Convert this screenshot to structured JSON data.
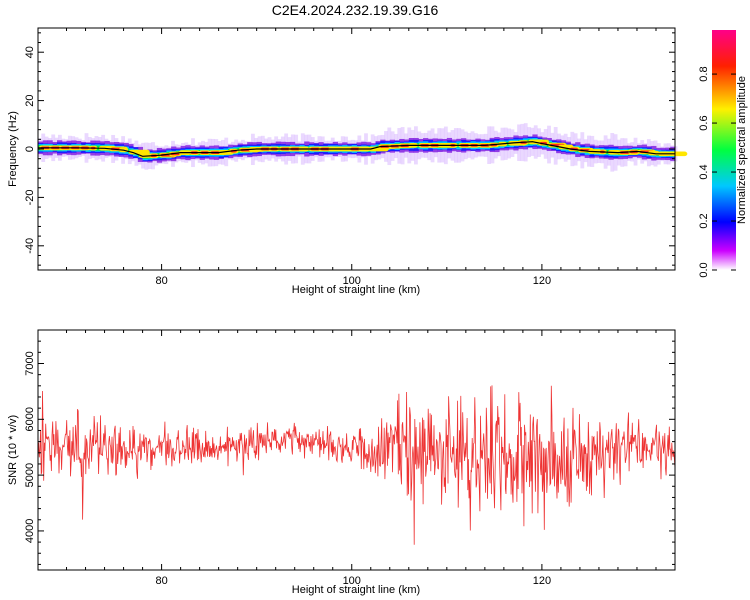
{
  "title": "C2E4.2024.232.19.39.G16",
  "chart_data": [
    {
      "type": "heatmap",
      "xlabel": "Height of straight line (km)",
      "ylabel": "Frequency (Hz)",
      "xlim": [
        67,
        134
      ],
      "ylim": [
        -50,
        50
      ],
      "xticks": [
        80,
        100,
        120
      ],
      "yticks": [
        -40,
        -20,
        0,
        20,
        40
      ],
      "colorbar": {
        "label": "Normalized spectral amplitude",
        "range": [
          0,
          0.98
        ],
        "ticks": [
          0.0,
          0.2,
          0.4,
          0.6,
          0.8
        ],
        "colormap": [
          "#ffffff",
          "#cc00ff",
          "#0000ff",
          "#00c8ff",
          "#00ff40",
          "#fff000",
          "#ff2000",
          "#ff0088"
        ]
      },
      "ridge": [
        {
          "x": 67,
          "y": 0.5
        },
        {
          "x": 71,
          "y": 0.5
        },
        {
          "x": 74,
          "y": 0.3
        },
        {
          "x": 76,
          "y": -0.5
        },
        {
          "x": 77,
          "y": -1.5
        },
        {
          "x": 78,
          "y": -3
        },
        {
          "x": 80,
          "y": -2.5
        },
        {
          "x": 82,
          "y": -1.5
        },
        {
          "x": 86,
          "y": -1.5
        },
        {
          "x": 88,
          "y": -0.5
        },
        {
          "x": 90,
          "y": 0
        },
        {
          "x": 94,
          "y": 0
        },
        {
          "x": 98,
          "y": 0
        },
        {
          "x": 102,
          "y": 0
        },
        {
          "x": 103,
          "y": 1
        },
        {
          "x": 106,
          "y": 1.5
        },
        {
          "x": 110,
          "y": 1.5
        },
        {
          "x": 114,
          "y": 1.5
        },
        {
          "x": 117,
          "y": 2.5
        },
        {
          "x": 119,
          "y": 3
        },
        {
          "x": 121,
          "y": 1.5
        },
        {
          "x": 123,
          "y": 0
        },
        {
          "x": 125,
          "y": -1
        },
        {
          "x": 128,
          "y": -1.5
        },
        {
          "x": 130,
          "y": -1
        },
        {
          "x": 132,
          "y": -2
        },
        {
          "x": 134,
          "y": -2
        }
      ]
    },
    {
      "type": "line",
      "xlabel": "Height of straight line (km)",
      "ylabel": "SNR (10 * v/v)",
      "xlim": [
        67,
        134
      ],
      "ylim": [
        3300,
        7600
      ],
      "xticks": [
        80,
        100,
        120
      ],
      "yticks": [
        4000,
        5000,
        6000,
        7000
      ],
      "series": [
        {
          "color": "#ee3333",
          "x_start": 67,
          "x_end": 134,
          "n": 1000,
          "envelope": [
            {
              "x": 67,
              "center": 5450,
              "spread": 600
            },
            {
              "x": 72,
              "center": 5450,
              "spread": 650
            },
            {
              "x": 77,
              "center": 5450,
              "spread": 560
            },
            {
              "x": 80,
              "center": 5550,
              "spread": 380
            },
            {
              "x": 84,
              "center": 5500,
              "spread": 350
            },
            {
              "x": 88,
              "center": 5550,
              "spread": 330
            },
            {
              "x": 94,
              "center": 5650,
              "spread": 300
            },
            {
              "x": 100,
              "center": 5500,
              "spread": 330
            },
            {
              "x": 102,
              "center": 5450,
              "spread": 450
            },
            {
              "x": 104,
              "center": 5450,
              "spread": 900
            },
            {
              "x": 108,
              "center": 5400,
              "spread": 1000
            },
            {
              "x": 112,
              "center": 5300,
              "spread": 1150
            },
            {
              "x": 118,
              "center": 5250,
              "spread": 1200
            },
            {
              "x": 122,
              "center": 5250,
              "spread": 1100
            },
            {
              "x": 126,
              "center": 5400,
              "spread": 700
            },
            {
              "x": 130,
              "center": 5450,
              "spread": 520
            },
            {
              "x": 134,
              "center": 5450,
              "spread": 500
            }
          ]
        }
      ]
    }
  ]
}
